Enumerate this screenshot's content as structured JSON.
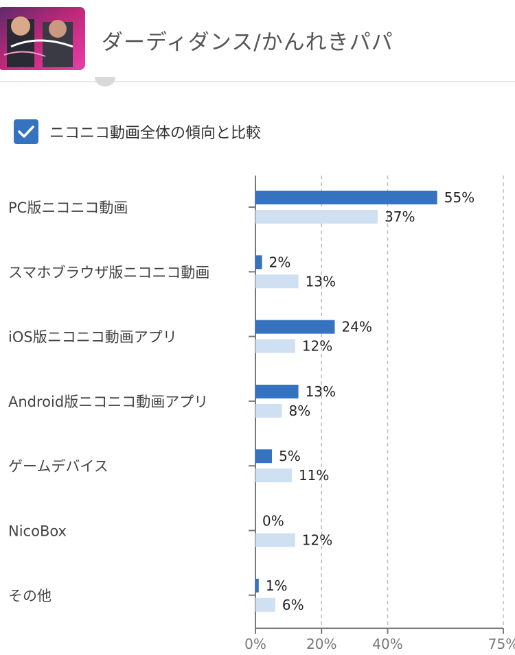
{
  "header": {
    "title": "ダーディダンス/かんれきパパ"
  },
  "compare": {
    "label": "ニコニコ動画全体の傾向と比較",
    "checked": true
  },
  "colors": {
    "primary": "#3573c0",
    "comparison": "#cfe0f2",
    "axis": "#777777",
    "grid": "#bbbbbb"
  },
  "chart_data": {
    "type": "bar",
    "orientation": "horizontal",
    "categories": [
      "PC版ニコニコ動画",
      "スマホブラウザ版ニコニコ動画",
      "iOS版ニコニコ動画アプリ",
      "Android版ニコニコ動画アプリ",
      "ゲームデバイス",
      "NicoBox",
      "その他"
    ],
    "series": [
      {
        "values": [
          55,
          2,
          24,
          13,
          5,
          0,
          1
        ],
        "labels": [
          "55%",
          "2%",
          "24%",
          "13%",
          "5%",
          "0%",
          "1%"
        ]
      },
      {
        "values": [
          37,
          13,
          12,
          8,
          11,
          12,
          6
        ],
        "labels": [
          "37%",
          "13%",
          "12%",
          "8%",
          "11%",
          "12%",
          "6%"
        ]
      }
    ],
    "xlim": [
      0,
      75
    ],
    "xticks": [
      0,
      20,
      40,
      75
    ],
    "xtick_labels": [
      "0%",
      "20%",
      "40%",
      "75%"
    ],
    "grid": "vertical dashed"
  }
}
